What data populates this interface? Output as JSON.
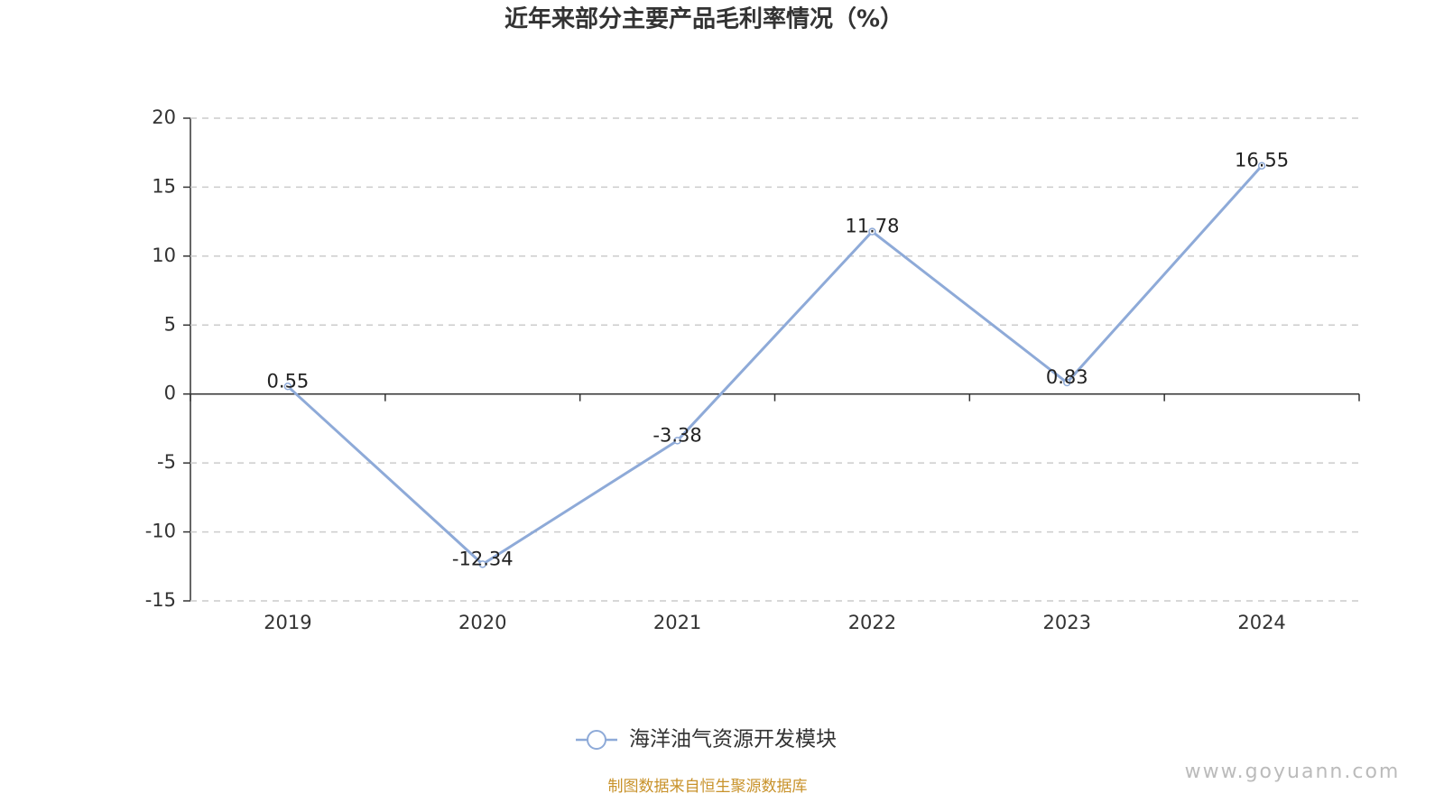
{
  "chart_data": {
    "type": "line",
    "title": "近年来部分主要产品毛利率情况（%）",
    "categories": [
      "2019",
      "2020",
      "2021",
      "2022",
      "2023",
      "2024"
    ],
    "series": [
      {
        "name": "海洋油气资源开发模块",
        "color": "#8eaad8",
        "values": [
          0.55,
          -12.34,
          -3.38,
          11.78,
          0.83,
          16.55
        ]
      }
    ],
    "ylim": [
      -15,
      20
    ],
    "yticks": [
      -15,
      -10,
      -5,
      0,
      5,
      10,
      15,
      20
    ],
    "grid": true,
    "source": "制图数据来自恒生聚源数据库",
    "watermark": "www.goyuann.com"
  }
}
